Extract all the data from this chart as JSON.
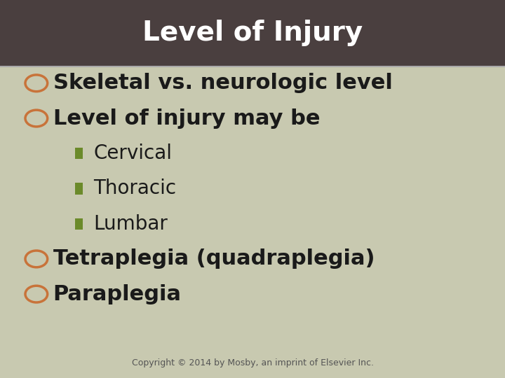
{
  "title": "Level of Injury",
  "title_bg_color": "#4a3f3f",
  "title_text_color": "#ffffff",
  "body_bg_color": "#c8c9b0",
  "title_fontsize": 28,
  "title_fontstyle": "bold",
  "bullet_circle_color": "#c8733a",
  "bullet_square_color": "#6b8a2a",
  "bullet_text_color": "#1a1a1a",
  "copyright_text": "Copyright © 2014 by Mosby, an imprint of Elsevier Inc.",
  "copyright_fontsize": 9,
  "separator_color": "#aaaaaa",
  "items": [
    {
      "type": "circle",
      "text": "Skeletal vs. neurologic level",
      "fontsize": 22,
      "bold": true,
      "indent": 0.08
    },
    {
      "type": "circle",
      "text": "Level of injury may be",
      "fontsize": 22,
      "bold": true,
      "indent": 0.08
    },
    {
      "type": "square",
      "text": "Cervical",
      "fontsize": 20,
      "bold": false,
      "indent": 0.16
    },
    {
      "type": "square",
      "text": "Thoracic",
      "fontsize": 20,
      "bold": false,
      "indent": 0.16
    },
    {
      "type": "square",
      "text": "Lumbar",
      "fontsize": 20,
      "bold": false,
      "indent": 0.16
    },
    {
      "type": "circle",
      "text": "Tetraplegia (quadraplegia)",
      "fontsize": 22,
      "bold": true,
      "indent": 0.08
    },
    {
      "type": "circle",
      "text": "Paraplegia",
      "fontsize": 22,
      "bold": true,
      "indent": 0.08
    }
  ]
}
